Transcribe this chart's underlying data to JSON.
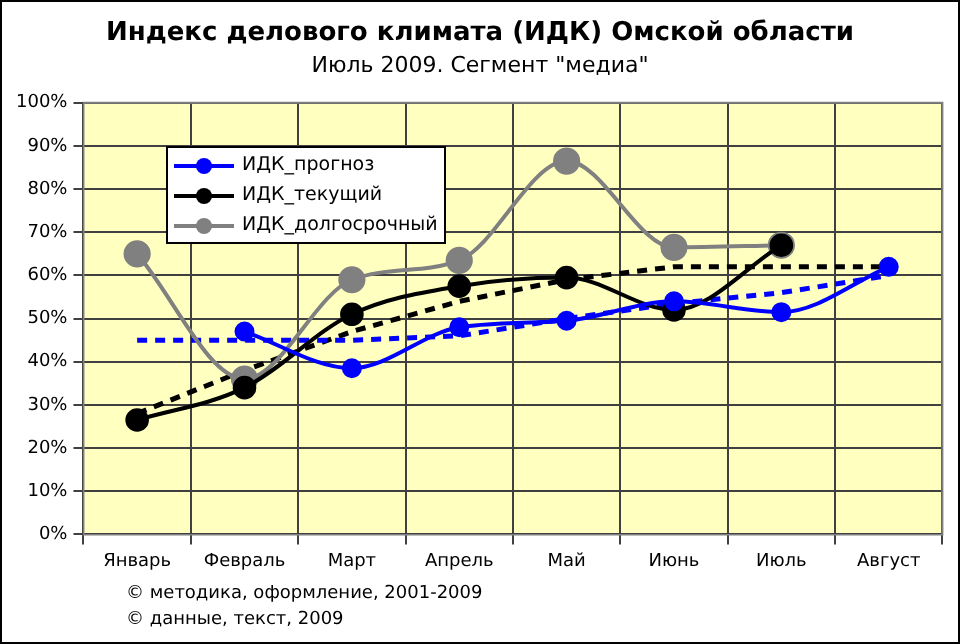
{
  "chart_data": {
    "type": "line",
    "title": "Индекс делового климата (ИДК) Омской области",
    "subtitle": "Июль 2009. Сегмент \"медиа\"",
    "categories": [
      "Январь",
      "Февраль",
      "Март",
      "Апрель",
      "Май",
      "Июнь",
      "Июль",
      "Август"
    ],
    "series": [
      {
        "name": "ИДК_прогноз",
        "color": "#0000ff",
        "values": [
          null,
          47,
          38.5,
          48,
          49.5,
          54,
          51.5,
          62
        ]
      },
      {
        "name": "ИДК_текущий",
        "color": "#000000",
        "values": [
          26.5,
          34,
          51,
          57.5,
          59.5,
          52,
          67,
          null
        ]
      },
      {
        "name": "ИДК_долгосрочный",
        "color": "#808080",
        "values": [
          65,
          36,
          59,
          63.5,
          86.5,
          66.5,
          67,
          null
        ]
      },
      {
        "color": "#0000ff",
        "values": [
          45,
          45,
          45,
          46,
          50,
          53.5,
          56,
          60
        ],
        "marker": "none",
        "line_style": "dashed"
      },
      {
        "color": "#000000",
        "values": [
          28,
          38,
          47,
          54,
          59,
          62,
          62,
          62
        ],
        "marker": "none",
        "line_style": "dashed"
      }
    ],
    "ylim": [
      0,
      100
    ],
    "yticks": [
      {
        "value": 0,
        "label": "0%"
      },
      {
        "value": 10,
        "label": "10%"
      },
      {
        "value": 20,
        "label": "20%"
      },
      {
        "value": 30,
        "label": "30%"
      },
      {
        "value": 40,
        "label": "40%"
      },
      {
        "value": 50,
        "label": "50%"
      },
      {
        "value": 60,
        "label": "60%"
      },
      {
        "value": 70,
        "label": "70%"
      },
      {
        "value": 80,
        "label": "80%"
      },
      {
        "value": 90,
        "label": "90%"
      },
      {
        "value": 100,
        "label": "100%"
      }
    ],
    "grid": true,
    "legend": "top left",
    "marker": "circle",
    "line_style": "solid",
    "annotations": [
      "© методика, оформление, 2001-2009",
      "© данные, текст, 2009"
    ]
  }
}
